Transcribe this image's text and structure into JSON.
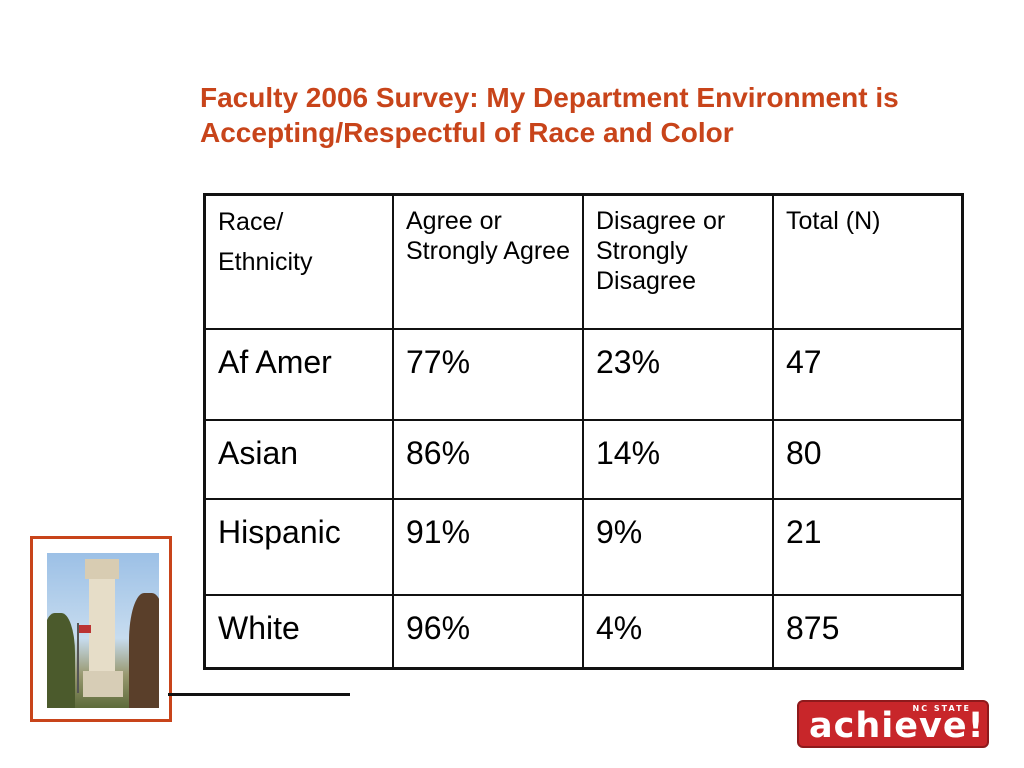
{
  "slide": {
    "title": "Faculty 2006 Survey: My Department Environment is Accepting/Respectful of Race and Color"
  },
  "table": {
    "header": {
      "col1_line1": "Race/",
      "col1_line2": "Ethnicity",
      "col2": "Agree or Strongly Agree",
      "col3": "Disagree or Strongly Disagree",
      "col4": "Total (N)"
    },
    "rows": [
      {
        "group": "Af Amer",
        "agree": "77%",
        "disagree": "23%",
        "total": "47"
      },
      {
        "group": "Asian",
        "agree": "86%",
        "disagree": "14%",
        "total": "80"
      },
      {
        "group": "Hispanic",
        "agree": "91%",
        "disagree": "9%",
        "total": "21"
      },
      {
        "group": "White",
        "agree": "96%",
        "disagree": "4%",
        "total": "875"
      }
    ]
  },
  "logo": {
    "main": "achieve!",
    "sub": "NC STATE"
  },
  "colors": {
    "title": "#c8441a",
    "logo_bg": "#c8262a"
  }
}
